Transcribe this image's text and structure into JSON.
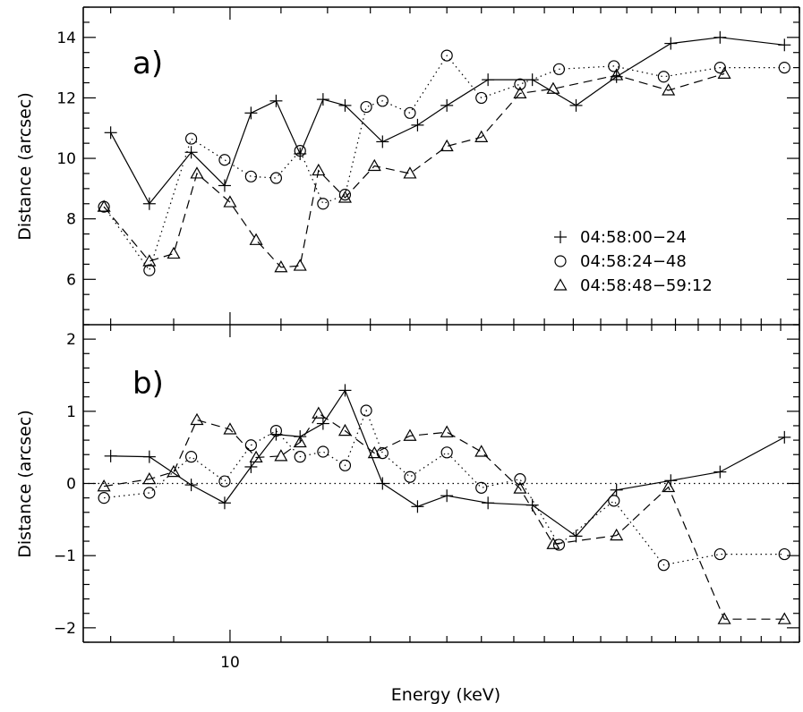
{
  "chart_data": [
    {
      "panel": "a)",
      "type": "line",
      "ylabel": "Distance (arcsec)",
      "ylim": [
        4.5,
        15
      ],
      "yticks": [
        6,
        8,
        10,
        12,
        14
      ],
      "xscale": "log",
      "series": [
        {
          "name": "04:58:00-24",
          "marker": "plus",
          "linestyle": "solid",
          "x": [
            8.0,
            8.6,
            9.3,
            9.9,
            10.4,
            10.9,
            11.4,
            11.9,
            12.4,
            13.3,
            14.2,
            15.0,
            16.2,
            17.6,
            19.1,
            20.6,
            22.8,
            25.0,
            28.2
          ],
          "y": [
            10.85,
            8.5,
            10.2,
            9.1,
            11.5,
            11.9,
            10.15,
            11.95,
            11.75,
            10.55,
            11.1,
            11.75,
            12.6,
            12.6,
            11.75,
            12.7,
            13.8,
            14.0,
            13.75
          ]
        },
        {
          "name": "04:58:24-48",
          "marker": "circle",
          "linestyle": "dotted",
          "x": [
            7.9,
            8.6,
            9.3,
            9.9,
            10.4,
            10.9,
            11.4,
            11.9,
            12.4,
            12.9,
            13.3,
            14.0,
            15.0,
            16.0,
            17.2,
            18.5,
            20.5,
            22.5,
            25.0,
            28.2
          ],
          "y": [
            8.4,
            6.3,
            10.65,
            9.95,
            9.4,
            9.35,
            10.25,
            8.5,
            8.8,
            11.7,
            11.9,
            11.5,
            13.4,
            12.0,
            12.45,
            12.95,
            13.05,
            12.7,
            13.0,
            13.0
          ]
        },
        {
          "name": "04:58:48-59:12",
          "marker": "triangle",
          "linestyle": "dashed",
          "x": [
            7.9,
            8.6,
            9.0,
            9.4,
            10.0,
            10.5,
            11.0,
            11.4,
            11.8,
            12.4,
            13.1,
            14.0,
            15.0,
            16.0,
            17.2,
            18.3,
            20.6,
            22.7,
            25.2
          ],
          "y": [
            8.4,
            6.6,
            6.85,
            9.5,
            8.55,
            7.3,
            6.4,
            6.45,
            9.6,
            8.7,
            9.75,
            9.5,
            10.4,
            10.7,
            12.15,
            12.3,
            12.75,
            12.25,
            12.8
          ]
        }
      ]
    },
    {
      "panel": "b)",
      "type": "line",
      "xlabel": "Energy (keV)",
      "ylabel": "Distance (arcsec)",
      "xscale": "log",
      "xlim": [
        7.6,
        29.0
      ],
      "xticks": [
        10
      ],
      "xtick_labels": [
        "10"
      ],
      "ylim": [
        -2.2,
        2.2
      ],
      "yticks": [
        -2,
        -1,
        0,
        1,
        2
      ],
      "zero_line": "dotted",
      "series": [
        {
          "name": "04:58:00-24",
          "marker": "plus",
          "linestyle": "solid",
          "x": [
            8.0,
            8.6,
            9.3,
            9.9,
            10.4,
            10.9,
            11.4,
            11.9,
            12.4,
            13.3,
            14.2,
            15.0,
            16.2,
            17.6,
            19.1,
            20.6,
            22.8,
            25.0,
            28.2
          ],
          "y": [
            0.38,
            0.37,
            -0.02,
            -0.27,
            0.23,
            0.68,
            0.65,
            0.83,
            1.29,
            0.0,
            -0.32,
            -0.17,
            -0.27,
            -0.3,
            -0.73,
            -0.09,
            0.04,
            0.16,
            0.64
          ]
        },
        {
          "name": "04:58:24-48",
          "marker": "circle",
          "linestyle": "dotted",
          "x": [
            7.9,
            8.6,
            9.3,
            9.9,
            10.4,
            10.9,
            11.4,
            11.9,
            12.4,
            12.9,
            13.3,
            14.0,
            15.0,
            16.0,
            17.2,
            18.5,
            20.5,
            22.5,
            25.0,
            28.2
          ],
          "y": [
            -0.2,
            -0.13,
            0.37,
            0.03,
            0.53,
            0.73,
            0.37,
            0.44,
            0.25,
            1.01,
            0.42,
            0.09,
            0.43,
            -0.06,
            0.06,
            -0.85,
            -0.24,
            -1.13,
            -0.98,
            -0.98
          ]
        },
        {
          "name": "04:58:48-59:12",
          "marker": "triangle",
          "linestyle": "dashed",
          "x": [
            7.9,
            8.6,
            9.0,
            9.4,
            10.0,
            10.5,
            11.0,
            11.4,
            11.8,
            12.4,
            13.1,
            14.0,
            15.0,
            16.0,
            17.2,
            18.3,
            20.6,
            22.7,
            25.2,
            28.2
          ],
          "y": [
            -0.04,
            0.06,
            0.16,
            0.88,
            0.75,
            0.36,
            0.38,
            0.57,
            0.97,
            0.73,
            0.42,
            0.66,
            0.71,
            0.44,
            -0.07,
            -0.84,
            -0.72,
            -0.05,
            -1.88,
            -1.88
          ]
        }
      ]
    }
  ]
}
